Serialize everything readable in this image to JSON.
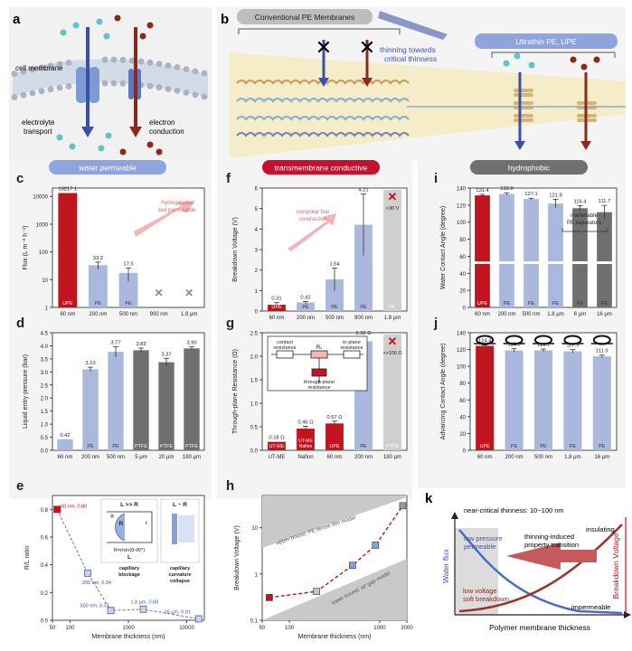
{
  "panel_letters": [
    "a",
    "b",
    "c",
    "d",
    "e",
    "f",
    "g",
    "h",
    "i",
    "j",
    "k"
  ],
  "panel_a": {
    "cell_membrane": "cell membrane",
    "electrolyte_1": "electrolyte",
    "electrolyte_2": "transport",
    "electron_1": "electron",
    "electron_2": "conduction"
  },
  "panel_b": {
    "conventional": "Conventional PE Membranes",
    "thinning_1": "thinning towards",
    "thinning_2": "critical thinness",
    "ultrathin": "Ultrathin PE, UPE"
  },
  "headers": {
    "water": "water permeable",
    "trans": "transmembrane conductive",
    "hydro": "hydrophobic"
  },
  "colors": {
    "upe_red": "#c0141e",
    "pe_blue": "#a9b8dc",
    "ptfe_gray": "#6f6f6f",
    "na_gray": "#cfcfcf",
    "header_blue": "#8fa3dc",
    "header_red": "#c8102e",
    "header_gray": "#707070"
  },
  "chart_data": [
    {
      "panel": "c",
      "type": "bar",
      "ylabel": "Flux (L m⁻² h⁻¹)",
      "yscale": "log",
      "ylim": [
        1,
        20000
      ],
      "yticks": [
        "1",
        "10",
        "100",
        "1000",
        "10000"
      ],
      "annotation": [
        "hydrophobic",
        "but permeable"
      ],
      "bars": [
        {
          "x": "60 nm",
          "value": 13217.1,
          "label": "13217.1",
          "tag": "UPE"
        },
        {
          "x": "200 nm",
          "value": 33.2,
          "label": "33.2",
          "tag": "PE"
        },
        {
          "x": "500 nm",
          "value": 17.5,
          "label": "17.5",
          "tag": "PE"
        },
        {
          "x": "900 nm",
          "value": null,
          "label": "",
          "tag": ""
        },
        {
          "x": "1.8 μm",
          "value": null,
          "label": "",
          "tag": ""
        }
      ]
    },
    {
      "panel": "d",
      "type": "bar",
      "ylabel": "Liquid entry pressure (bar)",
      "ylim": [
        0,
        4.5
      ],
      "yticks": [
        "0.0",
        "0.5",
        "1.0",
        "1.5",
        "2.0",
        "2.5",
        "3.0",
        "3.5",
        "4.0",
        "4.5"
      ],
      "bars": [
        {
          "x": "60 nm",
          "value": 0.42,
          "label": "0.42",
          "tag": ""
        },
        {
          "x": "200 nm",
          "value": 3.1,
          "label": "3.10",
          "tag": "PE"
        },
        {
          "x": "500 nm",
          "value": 3.77,
          "label": "3.77",
          "tag": "PE"
        },
        {
          "x": "5 μm",
          "value": 3.83,
          "label": "3.83",
          "tag": "PTFE"
        },
        {
          "x": "20 μm",
          "value": 3.37,
          "label": "3.37",
          "tag": "PTFE"
        },
        {
          "x": "180 μm",
          "value": 3.9,
          "label": "3.90",
          "tag": "PTFE"
        }
      ]
    },
    {
      "panel": "e",
      "type": "scatter",
      "xlabel": "Membrane thickness (nm)",
      "ylabel": "R/L ratio",
      "xscale": "log",
      "xlim": [
        50,
        20000
      ],
      "ylim": [
        0,
        0.9
      ],
      "xticks": [
        "50",
        "100",
        "1000",
        "10000"
      ],
      "yticks": [
        "0.0",
        "0.2",
        "0.4",
        "0.6",
        "0.8"
      ],
      "points": [
        {
          "x": 60,
          "y": 0.8,
          "label": "60 nm, 0.80"
        },
        {
          "x": 200,
          "y": 0.34,
          "label": "200 nm, 0.34"
        },
        {
          "x": 500,
          "y": 0.07,
          "label": "500 nm, 0.07"
        },
        {
          "x": 1800,
          "y": 0.08,
          "label": "1.8 μm, 0.08"
        },
        {
          "x": 16000,
          "y": 0.01,
          "label": "16 μm, 0.01"
        }
      ],
      "inset": {
        "left_title": "L >> R",
        "right_title": "L ~ R",
        "formula": "R=r/sin(θ-90°)",
        "r": "r",
        "R": "R",
        "theta": "θ",
        "L": "L",
        "left_caption": [
          "capillary",
          "blockage"
        ],
        "right_caption": [
          "capillary",
          "curvature",
          "collapse"
        ]
      }
    },
    {
      "panel": "f",
      "type": "bar",
      "ylabel": "Breakdown Voltage (V)",
      "ylim": [
        0,
        6
      ],
      "yticks": [
        "0",
        "1",
        "2",
        "3",
        "4",
        "5",
        "6"
      ],
      "annotation": [
        "nonpolar but",
        "conductive"
      ],
      "bars": [
        {
          "x": "60 nm",
          "value": 0.31,
          "label": "0.31",
          "tag": "UPE"
        },
        {
          "x": "200 nm",
          "value": 0.42,
          "label": "0.42",
          "tag": "PE"
        },
        {
          "x": "500 nm",
          "value": 1.54,
          "label": "1.54",
          "tag": "PE"
        },
        {
          "x": "900 nm",
          "value": 4.21,
          "label": "4.21",
          "tag": "PE"
        },
        {
          "x": "1.8 μm",
          "value": null,
          "label": ">30 V",
          "tag": "PE"
        }
      ]
    },
    {
      "panel": "g",
      "type": "bar",
      "ylabel": "Through-plane Resistance (Ω)",
      "ylim": [
        0,
        2.5
      ],
      "yticks": [
        "0.0",
        "0.5",
        "1.0",
        "1.5",
        "2.0",
        "2.5"
      ],
      "bars": [
        {
          "x": "UT-ME",
          "value": 0.18,
          "label": "0.18 Ω",
          "tag": "UT-ME"
        },
        {
          "x": "Nafion",
          "value": 0.46,
          "label": "0.46 Ω",
          "tag": "UT-ME Nafion"
        },
        {
          "x": "60 nm",
          "value": 0.57,
          "label": "0.57 Ω",
          "tag": "UPE"
        },
        {
          "x": "200 nm",
          "value": 2.32,
          "label": "2.32 Ω",
          "tag": "PE"
        },
        {
          "x": "180 μm",
          "value": null,
          "label": ">>100 Ω",
          "tag": "PTFE"
        }
      ],
      "inset": {
        "contact": [
          "contact",
          "resistance"
        ],
        "rs": "Rₛ",
        "inplane": [
          "in-plane",
          "resistance"
        ],
        "through": [
          "through-plane",
          "resistance"
        ]
      }
    },
    {
      "panel": "h",
      "type": "line",
      "xlabel": "Membrane thickness (nm)",
      "ylabel": "Breakdown Voltage (V)",
      "xscale": "log",
      "yscale": "log",
      "xlim": [
        50,
        2000
      ],
      "ylim": [
        0.1,
        50
      ],
      "xticks": [
        "50",
        "100",
        "1000",
        "2000"
      ],
      "yticks": [
        "0.1",
        "1",
        "10"
      ],
      "upper_label": "upper bound, PE dense film model",
      "lower_label": "lower bound, air gap model",
      "points": [
        {
          "x": 60,
          "y": 0.31
        },
        {
          "x": 200,
          "y": 0.42
        },
        {
          "x": 500,
          "y": 1.54
        },
        {
          "x": 900,
          "y": 4.21
        },
        {
          "x": 1800,
          "y": 30
        }
      ]
    },
    {
      "panel": "i",
      "type": "bar",
      "ylabel": "Water Contact Angle (degree)",
      "ylim": [
        0,
        140
      ],
      "yticks": [
        "0",
        "20",
        "40",
        "60",
        "80",
        "100",
        "120",
        "140"
      ],
      "annotation": [
        "marketable",
        "PE separators"
      ],
      "bars": [
        {
          "x": "60 nm",
          "value": 131.4,
          "label": "131.4",
          "tag": "UPE"
        },
        {
          "x": "200 nm",
          "value": 133.0,
          "label": "133.0",
          "tag": "PE"
        },
        {
          "x": "500 nm",
          "value": 127.1,
          "label": "127.1",
          "tag": "PE"
        },
        {
          "x": "1.8 μm",
          "value": 121.9,
          "label": "121.9",
          "tag": "PE"
        },
        {
          "x": "6 μm",
          "value": 116.4,
          "label": "116.4",
          "tag": "PE"
        },
        {
          "x": "16 μm",
          "value": 111.7,
          "label": "111.7",
          "tag": "PE"
        }
      ]
    },
    {
      "panel": "j",
      "type": "bar",
      "ylabel": "Advancing Contact Angle (degree)",
      "ylim": [
        0,
        140
      ],
      "yticks": [
        "0",
        "20",
        "40",
        "60",
        "80",
        "100",
        "120",
        "140"
      ],
      "bars": [
        {
          "x": "60 nm",
          "value": 124.4,
          "label": "124.4",
          "tag": "UPE"
        },
        {
          "x": "200 nm",
          "value": 119.0,
          "label": "119.0",
          "tag": "PE"
        },
        {
          "x": "500 nm",
          "value": 119.1,
          "label": "119.1",
          "tag": "PE"
        },
        {
          "x": "1.8 μm",
          "value": 117.9,
          "label": "117.9",
          "tag": "PE"
        },
        {
          "x": "16 μm",
          "value": 111.9,
          "label": "111.9",
          "tag": "PE"
        }
      ]
    },
    {
      "panel": "k",
      "type": "line",
      "xlabel": "Polymer membrane thickness",
      "ylabel_left": "Water flux",
      "ylabel_right": "Breakdown Voltage",
      "top": "near-critical thinness: 10~100 nm",
      "labels": {
        "low_pressure": [
          "low pressure",
          "permeable"
        ],
        "insulating": "insulating",
        "transition": [
          "thinning-induced",
          "property transition"
        ],
        "low_voltage": [
          "low voltage",
          "soft breakdown"
        ],
        "impermeable": "impermeable"
      }
    }
  ]
}
